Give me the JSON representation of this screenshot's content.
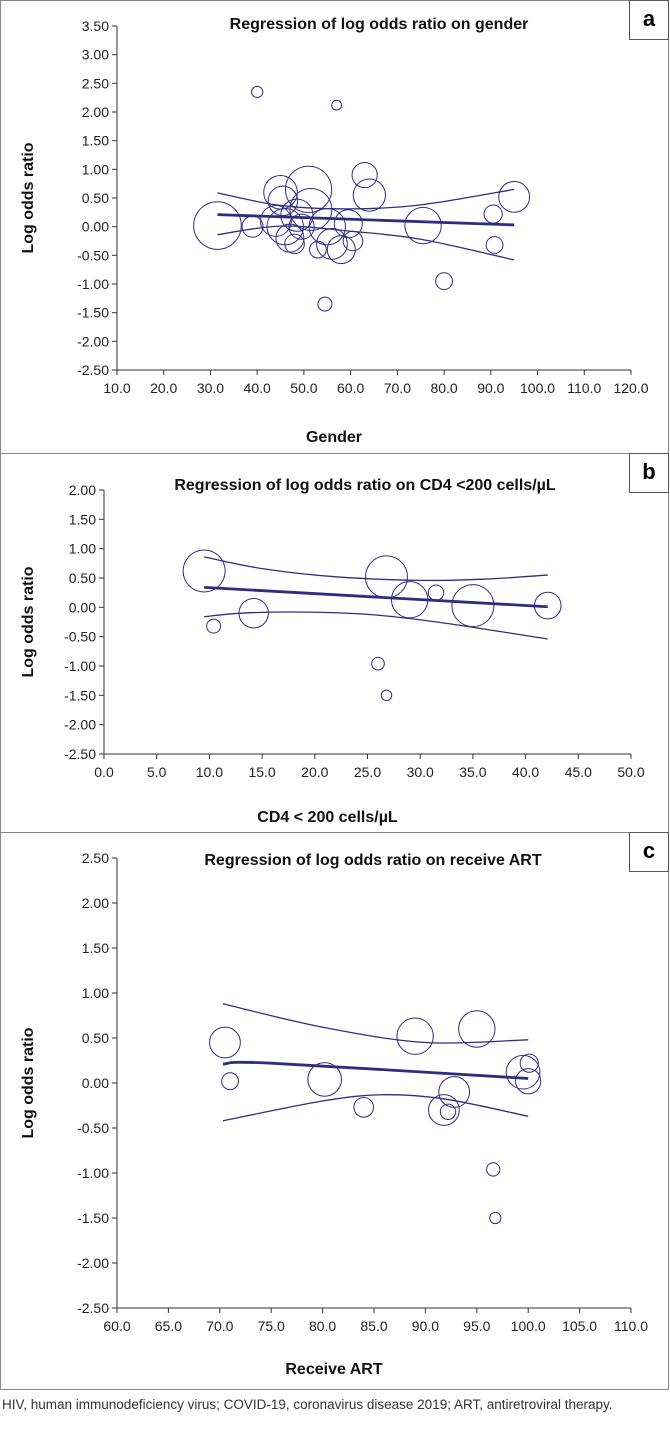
{
  "colors": {
    "series": "#2e2e80",
    "axis": "#333333"
  },
  "panels": [
    {
      "letter": "a",
      "title": "Regression of log odds ratio on gender",
      "xlabel": "Gender",
      "ylabel": "Log odds ratio"
    },
    {
      "letter": "b",
      "title": "Regression of log odds ratio on CD4 <200 cells/µL",
      "xlabel": "CD4 < 200 cells/µL",
      "ylabel": "Log odds ratio"
    },
    {
      "letter": "c",
      "title": "Regression of log odds ratio on receive ART",
      "xlabel": "Receive ART",
      "ylabel": "Log odds ratio"
    }
  ],
  "caption": "HIV, human immunodeficiency virus; COVID-19, coronavirus disease 2019; ART, antiretroviral therapy.",
  "chart_data": [
    {
      "type": "scatter",
      "title": "Regression of log odds ratio on gender",
      "xlabel": "Gender",
      "ylabel": "Log odds ratio",
      "xlim": [
        10,
        120
      ],
      "ylim": [
        -2.5,
        3.5
      ],
      "xticks": [
        "10.0",
        "20.0",
        "30.0",
        "40.0",
        "50.0",
        "60.0",
        "70.0",
        "80.0",
        "90.0",
        "100.0",
        "110.0",
        "120.0"
      ],
      "yticks": [
        "3.50",
        "3.00",
        "2.50",
        "2.00",
        "1.50",
        "1.00",
        "0.50",
        "0.00",
        "-0.50",
        "-1.00",
        "-1.50",
        "-2.00",
        "-2.50"
      ],
      "points": [
        {
          "x": 31.5,
          "y": 0.02,
          "weight": 3.4
        },
        {
          "x": 39.0,
          "y": 0.0,
          "weight": 1.5
        },
        {
          "x": 40.0,
          "y": 2.35,
          "weight": 0.8
        },
        {
          "x": 44.0,
          "y": 0.1,
          "weight": 2.2
        },
        {
          "x": 45.0,
          "y": 0.6,
          "weight": 2.4
        },
        {
          "x": 45.5,
          "y": 0.45,
          "weight": 2.1
        },
        {
          "x": 46.0,
          "y": 0.0,
          "weight": 2.6
        },
        {
          "x": 47.0,
          "y": -0.2,
          "weight": 2.0
        },
        {
          "x": 48.0,
          "y": -0.3,
          "weight": 1.4
        },
        {
          "x": 48.5,
          "y": 0.2,
          "weight": 2.3
        },
        {
          "x": 49.5,
          "y": 0.0,
          "weight": 1.8
        },
        {
          "x": 51.0,
          "y": 0.65,
          "weight": 3.3
        },
        {
          "x": 51.5,
          "y": 0.3,
          "weight": 3.0
        },
        {
          "x": 53.0,
          "y": -0.4,
          "weight": 1.2
        },
        {
          "x": 54.5,
          "y": -1.35,
          "weight": 1.0
        },
        {
          "x": 55.0,
          "y": 0.0,
          "weight": 2.6
        },
        {
          "x": 56.0,
          "y": -0.3,
          "weight": 2.2
        },
        {
          "x": 57.0,
          "y": 2.12,
          "weight": 0.7
        },
        {
          "x": 58.0,
          "y": -0.4,
          "weight": 2.0
        },
        {
          "x": 59.5,
          "y": 0.05,
          "weight": 2.0
        },
        {
          "x": 60.5,
          "y": -0.25,
          "weight": 1.4
        },
        {
          "x": 63.0,
          "y": 0.9,
          "weight": 1.8
        },
        {
          "x": 64.0,
          "y": 0.55,
          "weight": 2.3
        },
        {
          "x": 75.5,
          "y": 0.02,
          "weight": 2.6
        },
        {
          "x": 80.0,
          "y": -0.95,
          "weight": 1.2
        },
        {
          "x": 90.5,
          "y": 0.22,
          "weight": 1.3
        },
        {
          "x": 90.8,
          "y": -0.32,
          "weight": 1.2
        },
        {
          "x": 95.0,
          "y": 0.52,
          "weight": 2.2
        }
      ],
      "regression": {
        "x": [
          31.5,
          95.0
        ],
        "y": [
          0.21,
          0.03
        ]
      },
      "ci_upper": {
        "x": [
          31.5,
          45,
          60,
          75,
          95.0
        ],
        "y": [
          0.59,
          0.37,
          0.31,
          0.38,
          0.65
        ]
      },
      "ci_lower": {
        "x": [
          31.5,
          45,
          60,
          75,
          95.0
        ],
        "y": [
          -0.14,
          0.01,
          -0.08,
          -0.22,
          -0.58
        ]
      }
    },
    {
      "type": "scatter",
      "title": "Regression of log odds ratio on CD4 <200 cells/µL",
      "xlabel": "CD4 < 200 cells/µL",
      "ylabel": "Log odds ratio",
      "xlim": [
        0,
        50
      ],
      "ylim": [
        -2.5,
        2.0
      ],
      "xticks": [
        "0.0",
        "5.0",
        "10.0",
        "15.0",
        "20.0",
        "25.0",
        "30.0",
        "35.0",
        "40.0",
        "45.0",
        "50.0"
      ],
      "yticks": [
        "2.00",
        "1.50",
        "1.00",
        "0.50",
        "0.00",
        "-0.50",
        "-1.00",
        "-1.50",
        "-2.00",
        "-2.50"
      ],
      "points": [
        {
          "x": 9.5,
          "y": 0.62,
          "weight": 3.0
        },
        {
          "x": 10.4,
          "y": -0.32,
          "weight": 1.0
        },
        {
          "x": 14.2,
          "y": -0.1,
          "weight": 2.1
        },
        {
          "x": 26.0,
          "y": -0.96,
          "weight": 0.9
        },
        {
          "x": 26.8,
          "y": -1.5,
          "weight": 0.75
        },
        {
          "x": 26.8,
          "y": 0.52,
          "weight": 3.0
        },
        {
          "x": 29.0,
          "y": 0.13,
          "weight": 2.6
        },
        {
          "x": 31.5,
          "y": 0.25,
          "weight": 1.1
        },
        {
          "x": 35.0,
          "y": 0.03,
          "weight": 3.0
        },
        {
          "x": 42.1,
          "y": 0.03,
          "weight": 1.9
        }
      ],
      "regression": {
        "x": [
          9.5,
          42.1
        ],
        "y": [
          0.34,
          0.01
        ]
      },
      "ci_upper": {
        "x": [
          9.5,
          15,
          22,
          30,
          36,
          42.1
        ],
        "y": [
          0.86,
          0.66,
          0.52,
          0.46,
          0.48,
          0.55
        ]
      },
      "ci_lower": {
        "x": [
          9.5,
          13,
          18,
          25,
          32,
          42.1
        ],
        "y": [
          -0.16,
          -0.1,
          -0.08,
          -0.12,
          -0.26,
          -0.54
        ]
      }
    },
    {
      "type": "scatter",
      "title": "Regression of log odds ratio on receive ART",
      "xlabel": "Receive ART",
      "ylabel": "Log odds ratio",
      "xlim": [
        60,
        110
      ],
      "ylim": [
        -2.5,
        2.5
      ],
      "xticks": [
        "60.0",
        "65.0",
        "70.0",
        "75.0",
        "80.0",
        "85.0",
        "90.0",
        "95.0",
        "100.0",
        "105.0",
        "110.0"
      ],
      "yticks": [
        "2.50",
        "2.00",
        "1.50",
        "1.00",
        "0.50",
        "0.00",
        "-0.50",
        "-1.00",
        "-1.50",
        "-2.00",
        "-2.50"
      ],
      "points": [
        {
          "x": 70.5,
          "y": 0.45,
          "weight": 2.2
        },
        {
          "x": 71.0,
          "y": 0.02,
          "weight": 1.2
        },
        {
          "x": 80.2,
          "y": 0.04,
          "weight": 2.4
        },
        {
          "x": 84.0,
          "y": -0.27,
          "weight": 1.4
        },
        {
          "x": 89.0,
          "y": 0.52,
          "weight": 2.6
        },
        {
          "x": 91.8,
          "y": -0.3,
          "weight": 2.2
        },
        {
          "x": 92.2,
          "y": -0.32,
          "weight": 1.1
        },
        {
          "x": 92.8,
          "y": -0.1,
          "weight": 2.2
        },
        {
          "x": 95.0,
          "y": 0.6,
          "weight": 2.6
        },
        {
          "x": 96.6,
          "y": -0.96,
          "weight": 0.95
        },
        {
          "x": 96.8,
          "y": -1.5,
          "weight": 0.8
        },
        {
          "x": 99.5,
          "y": 0.12,
          "weight": 2.4
        },
        {
          "x": 100.0,
          "y": 0.02,
          "weight": 1.8
        },
        {
          "x": 100.1,
          "y": 0.22,
          "weight": 1.3
        }
      ],
      "regression": {
        "x": [
          70.3,
          75,
          100.0
        ],
        "y": [
          0.21,
          0.22,
          0.05
        ]
      },
      "ci_upper": {
        "x": [
          70.3,
          80,
          90,
          100.0
        ],
        "y": [
          0.88,
          0.62,
          0.45,
          0.48
        ]
      },
      "ci_lower": {
        "x": [
          70.3,
          80,
          86,
          92,
          100.0
        ],
        "y": [
          -0.42,
          -0.2,
          -0.13,
          -0.18,
          -0.37
        ]
      }
    }
  ]
}
